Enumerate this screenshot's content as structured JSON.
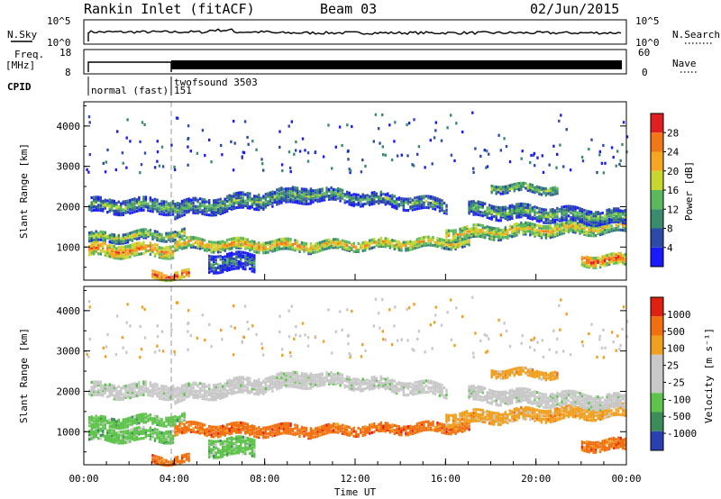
{
  "header": {
    "station": "Rankin Inlet (fitACF)",
    "beam": "Beam 03",
    "date": "02/Jun/2015"
  },
  "aux_panels": {
    "nsky": {
      "label": "N.Sky",
      "ticks": [
        "10^5",
        "10^0"
      ]
    },
    "nsearch": {
      "label": "N.Search",
      "ticks": [
        "10^5",
        "10^0"
      ]
    },
    "freq": {
      "label": "Freq.",
      "unit": "[MHz]",
      "ticks": [
        "18",
        "8"
      ]
    },
    "nave": {
      "label": "Nave",
      "ticks": [
        "60",
        "0"
      ]
    },
    "cpid": {
      "label": "CPID",
      "modes": [
        "normal (fast)",
        "twofsound 3503",
        "151"
      ]
    }
  },
  "chart_data": [
    {
      "type": "heatmap",
      "name": "power",
      "ylabel": "Slant Range [km]",
      "ylim": [
        180,
        4600
      ],
      "yticks": [
        "1000",
        "2000",
        "3000",
        "4000"
      ],
      "colorbar": {
        "label": "Power [dB]",
        "ticks": [
          "4",
          "8",
          "12",
          "16",
          "20",
          "24",
          "28"
        ]
      }
    },
    {
      "type": "heatmap",
      "name": "velocity",
      "ylabel": "Slant Range [km]",
      "ylim": [
        180,
        4600
      ],
      "yticks": [
        "1000",
        "2000",
        "3000",
        "4000"
      ],
      "colorbar": {
        "label": "Velocity [m s⁻¹]",
        "ticks": [
          "1000",
          "500",
          "100",
          "25",
          "-25",
          "-100",
          "-500",
          "-1000"
        ]
      },
      "xlabel": "Time UT",
      "xticks": [
        "00:00",
        "04:00",
        "08:00",
        "12:00",
        "16:00",
        "20:00",
        "00:00"
      ],
      "xlim_hours": [
        0,
        24
      ]
    }
  ],
  "colors": {
    "power_scale": [
      "#1a1aff",
      "#2e4aa8",
      "#3a8a6e",
      "#5cb85c",
      "#c8d630",
      "#f5a623",
      "#f07818",
      "#e02020"
    ],
    "velocity_scale": [
      "#2a3fb0",
      "#3c8c5a",
      "#5ec34a",
      "#c8c8c8",
      "#c8c8c8",
      "#f0a020",
      "#f07010",
      "#e02010"
    ]
  }
}
